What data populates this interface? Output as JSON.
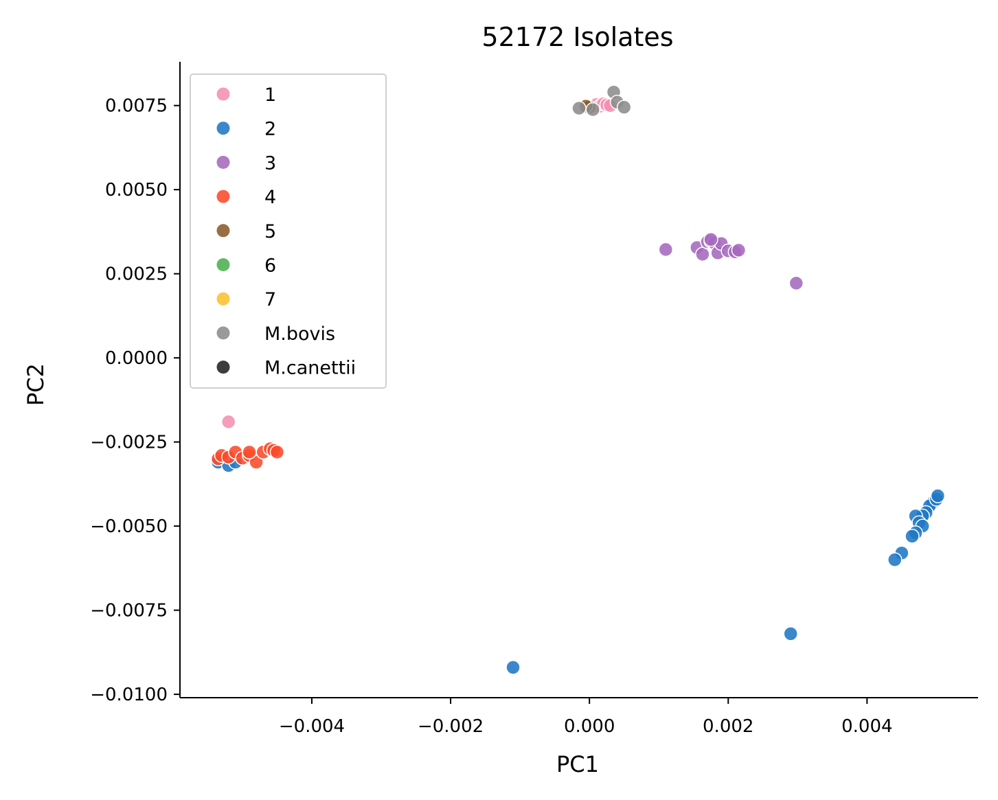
{
  "chart_data": {
    "type": "scatter",
    "title": "52172 Isolates",
    "xlabel": "PC1",
    "ylabel": "PC2",
    "xlim": [
      -0.0059,
      0.0056
    ],
    "ylim": [
      -0.0101,
      0.0088
    ],
    "x_ticks": [
      -0.004,
      -0.002,
      0.0,
      0.002,
      0.004
    ],
    "x_tick_labels": [
      "−0.004",
      "−0.002",
      "0.000",
      "0.002",
      "0.004"
    ],
    "y_ticks": [
      0.0075,
      0.005,
      0.0025,
      0.0,
      -0.0025,
      -0.005,
      -0.0075,
      -0.01
    ],
    "y_tick_labels": [
      "0.0075",
      "0.0050",
      "0.0025",
      "0.0000",
      "−0.0025",
      "−0.0050",
      "−0.0075",
      "−0.0100"
    ],
    "legend_position": "top-left",
    "grid": false,
    "series": [
      {
        "name": "1",
        "color": "#f48fb1",
        "points": [
          [
            5e-05,
            0.0075
          ],
          [
            0.0001,
            0.00753
          ],
          [
            0.00015,
            0.00748
          ],
          [
            0.0002,
            0.00755
          ],
          [
            0.00025,
            0.00752
          ],
          [
            0.0003,
            0.0075
          ],
          [
            -0.0052,
            -0.0019
          ],
          [
            -0.0052,
            -0.003
          ]
        ]
      },
      {
        "name": "2",
        "color": "#1f77c4",
        "points": [
          [
            -0.00535,
            -0.0031
          ],
          [
            -0.0052,
            -0.0032
          ],
          [
            -0.0051,
            -0.0031
          ],
          [
            0.00495,
            -0.0043
          ],
          [
            0.0049,
            -0.0044
          ],
          [
            0.00485,
            -0.0046
          ],
          [
            0.0048,
            -0.0047
          ],
          [
            0.0047,
            -0.0047
          ],
          [
            0.00475,
            -0.0049
          ],
          [
            0.0048,
            -0.005
          ],
          [
            0.0047,
            -0.0052
          ],
          [
            0.00465,
            -0.0053
          ],
          [
            0.0045,
            -0.0058
          ],
          [
            0.0044,
            -0.006
          ],
          [
            0.005,
            -0.0042
          ],
          [
            0.00502,
            -0.0041
          ],
          [
            0.0029,
            -0.0082
          ],
          [
            -0.0011,
            -0.0092
          ]
        ]
      },
      {
        "name": "3",
        "color": "#a569bd",
        "points": [
          [
            0.0011,
            0.00322
          ],
          [
            0.00155,
            0.00328
          ],
          [
            0.00163,
            0.00308
          ],
          [
            0.0017,
            0.00345
          ],
          [
            0.00175,
            0.00347
          ],
          [
            0.0018,
            0.00342
          ],
          [
            0.00185,
            0.00312
          ],
          [
            0.0019,
            0.0034
          ],
          [
            0.002,
            0.00318
          ],
          [
            0.0021,
            0.00315
          ],
          [
            0.00215,
            0.0032
          ],
          [
            0.00175,
            0.00352
          ],
          [
            0.00298,
            0.00222
          ]
        ]
      },
      {
        "name": "4",
        "color": "#fc4a2a",
        "points": [
          [
            -0.00535,
            -0.003
          ],
          [
            -0.0053,
            -0.0029
          ],
          [
            -0.0052,
            -0.00295
          ],
          [
            -0.0051,
            -0.0028
          ],
          [
            -0.005,
            -0.00298
          ],
          [
            -0.0049,
            -0.0029
          ],
          [
            -0.0048,
            -0.0031
          ],
          [
            -0.0047,
            -0.0028
          ],
          [
            -0.0046,
            -0.0027
          ],
          [
            -0.00455,
            -0.00275
          ],
          [
            -0.0045,
            -0.0028
          ],
          [
            -0.0049,
            -0.0028
          ]
        ]
      },
      {
        "name": "5",
        "color": "#8b5a2b",
        "points": [
          [
            0.0,
            0.00745
          ],
          [
            -5e-05,
            0.00748
          ]
        ]
      },
      {
        "name": "6",
        "color": "#4caf50",
        "points": []
      },
      {
        "name": "7",
        "color": "#fbc02d",
        "points": []
      },
      {
        "name": "M.bovis",
        "color": "#8c8c8c",
        "points": [
          [
            -0.00015,
            0.00742
          ],
          [
            5e-05,
            0.00738
          ],
          [
            0.00035,
            0.0079
          ],
          [
            0.0004,
            0.0076
          ],
          [
            0.0005,
            0.00745
          ]
        ]
      },
      {
        "name": "M.canettii",
        "color": "#222222",
        "points": []
      }
    ]
  }
}
